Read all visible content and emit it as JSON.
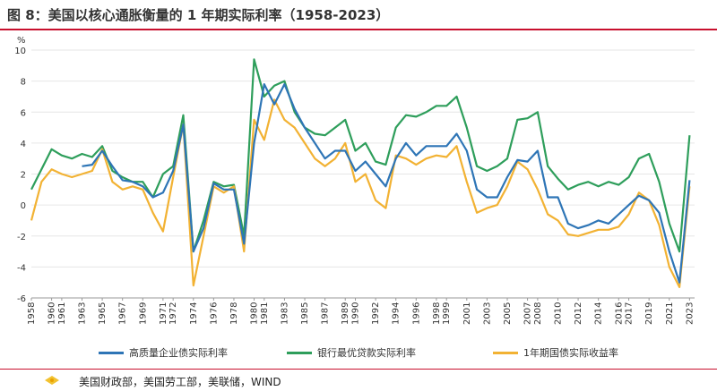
{
  "figure": {
    "title": "图 8：美国以核心通胀衡量的 1 年期实际利率（1958-2023）",
    "source": "美国财政部，美国劳工部，美联储，WIND"
  },
  "chart_data": {
    "type": "line",
    "unit_label": "%",
    "ylim": [
      -6,
      10
    ],
    "yticks": [
      -6,
      -4,
      -2,
      0,
      2,
      4,
      6,
      8,
      10
    ],
    "xlim": [
      1958,
      2023.5
    ],
    "xticks": [
      "1958",
      "1960",
      "1961",
      "1963",
      "1965",
      "1967",
      "1969",
      "1971",
      "1972",
      "1974",
      "1976",
      "1978",
      "1980",
      "1981",
      "1983",
      "1985",
      "1987",
      "1989",
      "1990",
      "1992",
      "1994",
      "1996",
      "1998",
      "1999",
      "2001",
      "2003",
      "2005",
      "2007",
      "2008",
      "2010",
      "2012",
      "2014",
      "2016",
      "2017",
      "2019",
      "2021",
      "2023"
    ],
    "grid": "horizontal",
    "legend_position": "bottom",
    "colors": [
      "#2e75b6",
      "#2e9e5b",
      "#f2b233"
    ],
    "series": [
      {
        "name": "高质量企业债实际利率",
        "x": [
          1963,
          1964,
          1965,
          1966,
          1967,
          1968,
          1969,
          1970,
          1971,
          1972,
          1973,
          1974,
          1975,
          1976,
          1977,
          1978,
          1979,
          1980,
          1981,
          1982,
          1983,
          1984,
          1985,
          1986,
          1987,
          1988,
          1989,
          1990,
          1991,
          1992,
          1993,
          1994,
          1995,
          1996,
          1997,
          1998,
          1999,
          2000,
          2001,
          2002,
          2003,
          2004,
          2005,
          2006,
          2007,
          2008,
          2009,
          2010,
          2011,
          2012,
          2013,
          2014,
          2015,
          2016,
          2017,
          2018,
          2019,
          2020,
          2021,
          2022,
          2023
        ],
        "y": [
          2.5,
          2.6,
          3.5,
          2.5,
          1.6,
          1.5,
          1.2,
          0.5,
          0.8,
          2.2,
          5.2,
          -3.0,
          -1.5,
          1.4,
          1.0,
          1.0,
          -2.5,
          4.0,
          7.8,
          6.5,
          7.8,
          6.2,
          5.0,
          4.0,
          3.0,
          3.5,
          3.5,
          2.2,
          2.8,
          2.0,
          1.2,
          3.0,
          4.0,
          3.2,
          3.8,
          3.8,
          3.8,
          4.6,
          3.5,
          1.0,
          0.5,
          0.5,
          1.8,
          2.9,
          2.8,
          3.5,
          0.5,
          0.5,
          -1.2,
          -1.5,
          -1.3,
          -1.0,
          -1.2,
          -0.6,
          0.0,
          0.6,
          0.3,
          -0.5,
          -3.0,
          -5.0,
          1.6
        ]
      },
      {
        "name": "银行最优贷款实际利率",
        "x": [
          1958,
          1959,
          1960,
          1961,
          1962,
          1963,
          1964,
          1965,
          1966,
          1967,
          1968,
          1969,
          1970,
          1971,
          1972,
          1973,
          1974,
          1975,
          1976,
          1977,
          1978,
          1979,
          1980,
          1981,
          1982,
          1983,
          1984,
          1985,
          1986,
          1987,
          1988,
          1989,
          1990,
          1991,
          1992,
          1993,
          1994,
          1995,
          1996,
          1997,
          1998,
          1999,
          2000,
          2001,
          2002,
          2003,
          2004,
          2005,
          2006,
          2007,
          2008,
          2009,
          2010,
          2011,
          2012,
          2013,
          2014,
          2015,
          2016,
          2017,
          2018,
          2019,
          2020,
          2021,
          2022,
          2023
        ],
        "y": [
          1.0,
          2.3,
          3.6,
          3.2,
          3.0,
          3.3,
          3.1,
          3.8,
          2.2,
          1.8,
          1.5,
          1.5,
          0.5,
          2.0,
          2.5,
          5.8,
          -3.0,
          -1.0,
          1.5,
          1.2,
          1.3,
          -2.0,
          9.4,
          7.0,
          7.7,
          8.0,
          6.0,
          5.0,
          4.6,
          4.5,
          5.0,
          5.5,
          3.5,
          4.0,
          2.8,
          2.6,
          5.0,
          5.8,
          5.7,
          6.0,
          6.4,
          6.4,
          7.0,
          5.0,
          2.5,
          2.2,
          2.5,
          3.0,
          5.5,
          5.6,
          6.0,
          2.5,
          1.7,
          1.0,
          1.3,
          1.5,
          1.2,
          1.5,
          1.3,
          1.8,
          3.0,
          3.3,
          1.5,
          -1.2,
          -3.0,
          4.5
        ]
      },
      {
        "name": "1年期国债实际收益率",
        "x": [
          1958,
          1959,
          1960,
          1961,
          1962,
          1963,
          1964,
          1965,
          1966,
          1967,
          1968,
          1969,
          1970,
          1971,
          1972,
          1973,
          1974,
          1975,
          1976,
          1977,
          1978,
          1979,
          1980,
          1981,
          1982,
          1983,
          1984,
          1985,
          1986,
          1987,
          1988,
          1989,
          1990,
          1991,
          1992,
          1993,
          1994,
          1995,
          1996,
          1997,
          1998,
          1999,
          2000,
          2001,
          2002,
          2003,
          2004,
          2005,
          2006,
          2007,
          2008,
          2009,
          2010,
          2011,
          2012,
          2013,
          2014,
          2015,
          2016,
          2017,
          2018,
          2019,
          2020,
          2021,
          2022,
          2023
        ],
        "y": [
          -1.0,
          1.5,
          2.3,
          2.0,
          1.8,
          2.0,
          2.2,
          3.6,
          1.5,
          1.0,
          1.2,
          1.0,
          -0.5,
          -1.7,
          1.8,
          5.2,
          -5.2,
          -2.0,
          1.2,
          0.8,
          1.2,
          -3.0,
          5.5,
          4.2,
          6.8,
          5.5,
          5.0,
          4.0,
          3.0,
          2.5,
          3.0,
          4.0,
          1.5,
          2.0,
          0.3,
          -0.2,
          3.2,
          3.0,
          2.6,
          3.0,
          3.2,
          3.1,
          3.8,
          1.5,
          -0.5,
          -0.2,
          0.0,
          1.2,
          2.8,
          2.3,
          1.0,
          -0.6,
          -1.0,
          -1.9,
          -2.0,
          -1.8,
          -1.6,
          -1.6,
          -1.4,
          -0.6,
          0.8,
          0.3,
          -1.3,
          -4.0,
          -5.3,
          1.2
        ]
      }
    ]
  }
}
